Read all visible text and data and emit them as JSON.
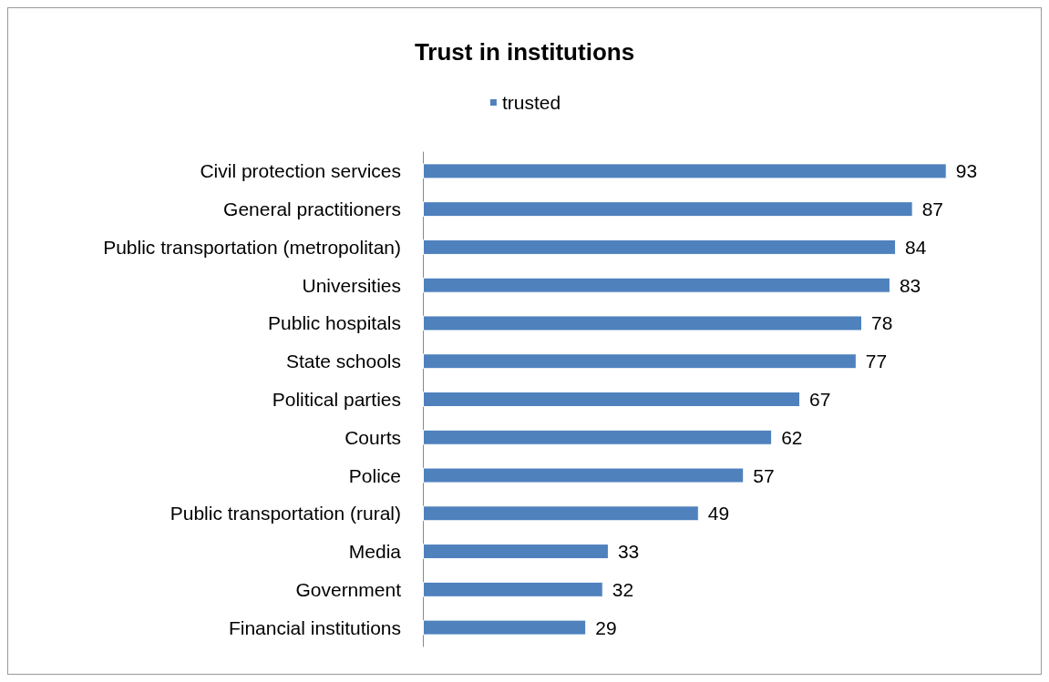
{
  "chart_data": {
    "type": "bar",
    "orientation": "horizontal",
    "title": "Trust in institutions",
    "categories": [
      "Civil protection services",
      "General practitioners",
      "Public transportation (metropolitan)",
      "Universities",
      "Public hospitals",
      "State schools",
      "Political parties",
      "Courts",
      "Police",
      "Public transportation (rural)",
      "Media",
      "Government",
      "Financial institutions"
    ],
    "series": [
      {
        "name": "trusted",
        "color": "#4f81bd",
        "values": [
          93,
          87,
          84,
          83,
          78,
          77,
          67,
          62,
          57,
          49,
          33,
          32,
          29
        ]
      }
    ],
    "data_labels": true,
    "legend": "top"
  }
}
